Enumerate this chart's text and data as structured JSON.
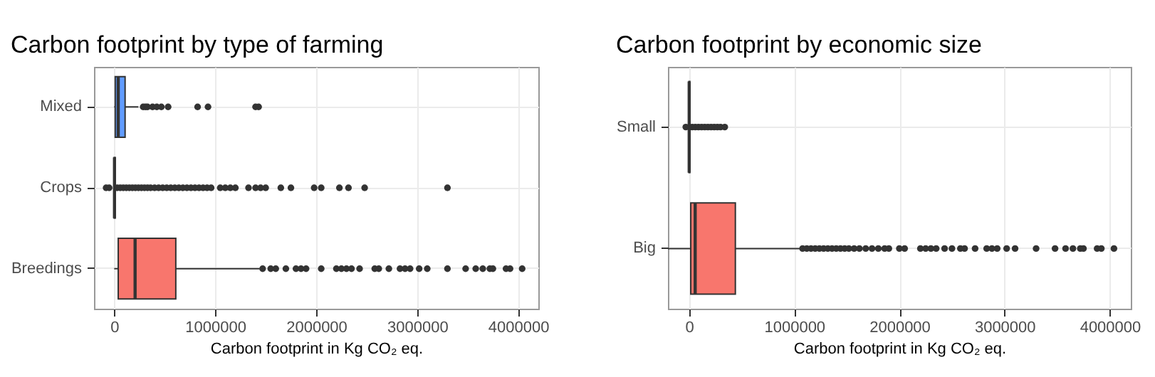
{
  "chart_data": [
    {
      "type": "box",
      "title": "Carbon footprint by type of farming",
      "xlabel": "Carbon footprint in Kg CO₂ eq.",
      "orientation": "horizontal",
      "grid": true,
      "categories": [
        "Mixed",
        "Crops",
        "Breedings"
      ],
      "colors": [
        "#619cff",
        "#00ba38",
        "#f8766d"
      ],
      "xlim": [
        -200000,
        4200000
      ],
      "xticks": [
        0,
        1000000,
        2000000,
        3000000,
        4000000
      ],
      "boxes": [
        {
          "low": 0,
          "q1": 10000,
          "median": 40000,
          "q3": 108000,
          "high": 240000,
          "outliers": [
            287000,
            310000,
            330000,
            380000,
            422000,
            467000,
            534000,
            826000,
            929000,
            1400000,
            1430000
          ]
        },
        {
          "low": 0,
          "q1": 0,
          "median": 3000,
          "q3": 10000,
          "high": 20000,
          "outliers": [
            -80000,
            -50000,
            30000,
            60000,
            90000,
            120000,
            150000,
            180000,
            210000,
            240000,
            270000,
            300000,
            330000,
            360000,
            400000,
            440000,
            480000,
            520000,
            560000,
            600000,
            640000,
            680000,
            720000,
            760000,
            800000,
            840000,
            880000,
            920000,
            960000,
            1050000,
            1100000,
            1150000,
            1200000,
            1330000,
            1400000,
            1450000,
            1500000,
            1650000,
            1750000,
            1980000,
            2050000,
            2230000,
            2320000,
            2480000,
            3300000
          ]
        },
        {
          "low": 0,
          "q1": 40000,
          "median": 207000,
          "q3": 610000,
          "high": 1440000,
          "outliers": [
            1470000,
            1550000,
            1600000,
            1700000,
            1800000,
            1850000,
            1900000,
            2050000,
            2200000,
            2250000,
            2300000,
            2350000,
            2430000,
            2580000,
            2620000,
            2720000,
            2830000,
            2880000,
            2930000,
            3020000,
            3100000,
            3300000,
            3480000,
            3580000,
            3650000,
            3720000,
            3750000,
            3880000,
            3920000,
            4040000
          ]
        }
      ]
    },
    {
      "type": "box",
      "title": "Carbon footprint by economic size",
      "xlabel": "Carbon footprint in Kg CO₂ eq.",
      "orientation": "horizontal",
      "grid": true,
      "categories": [
        "Small",
        "Big"
      ],
      "colors": [
        "#00bfc4",
        "#f8766d"
      ],
      "xlim": [
        -200000,
        4200000
      ],
      "xticks": [
        0,
        1000000,
        2000000,
        3000000,
        4000000
      ],
      "boxes": [
        {
          "low": 0,
          "q1": 0,
          "median": 2000,
          "q3": 8000,
          "high": 15000,
          "outliers": [
            -30000,
            30000,
            60000,
            90000,
            120000,
            150000,
            180000,
            210000,
            240000,
            270000,
            300000,
            340000
          ]
        },
        {
          "low": -200000,
          "q1": 17000,
          "median": 59000,
          "q3": 441000,
          "high": 1070000,
          "outliers": [
            1080000,
            1120000,
            1160000,
            1200000,
            1240000,
            1280000,
            1320000,
            1360000,
            1400000,
            1440000,
            1480000,
            1520000,
            1570000,
            1620000,
            1680000,
            1740000,
            1800000,
            1860000,
            1900000,
            2000000,
            2050000,
            2200000,
            2250000,
            2300000,
            2350000,
            2430000,
            2500000,
            2580000,
            2620000,
            2720000,
            2830000,
            2880000,
            2930000,
            3020000,
            3100000,
            3300000,
            3480000,
            3580000,
            3650000,
            3720000,
            3750000,
            3880000,
            3920000,
            4040000
          ]
        }
      ]
    }
  ]
}
